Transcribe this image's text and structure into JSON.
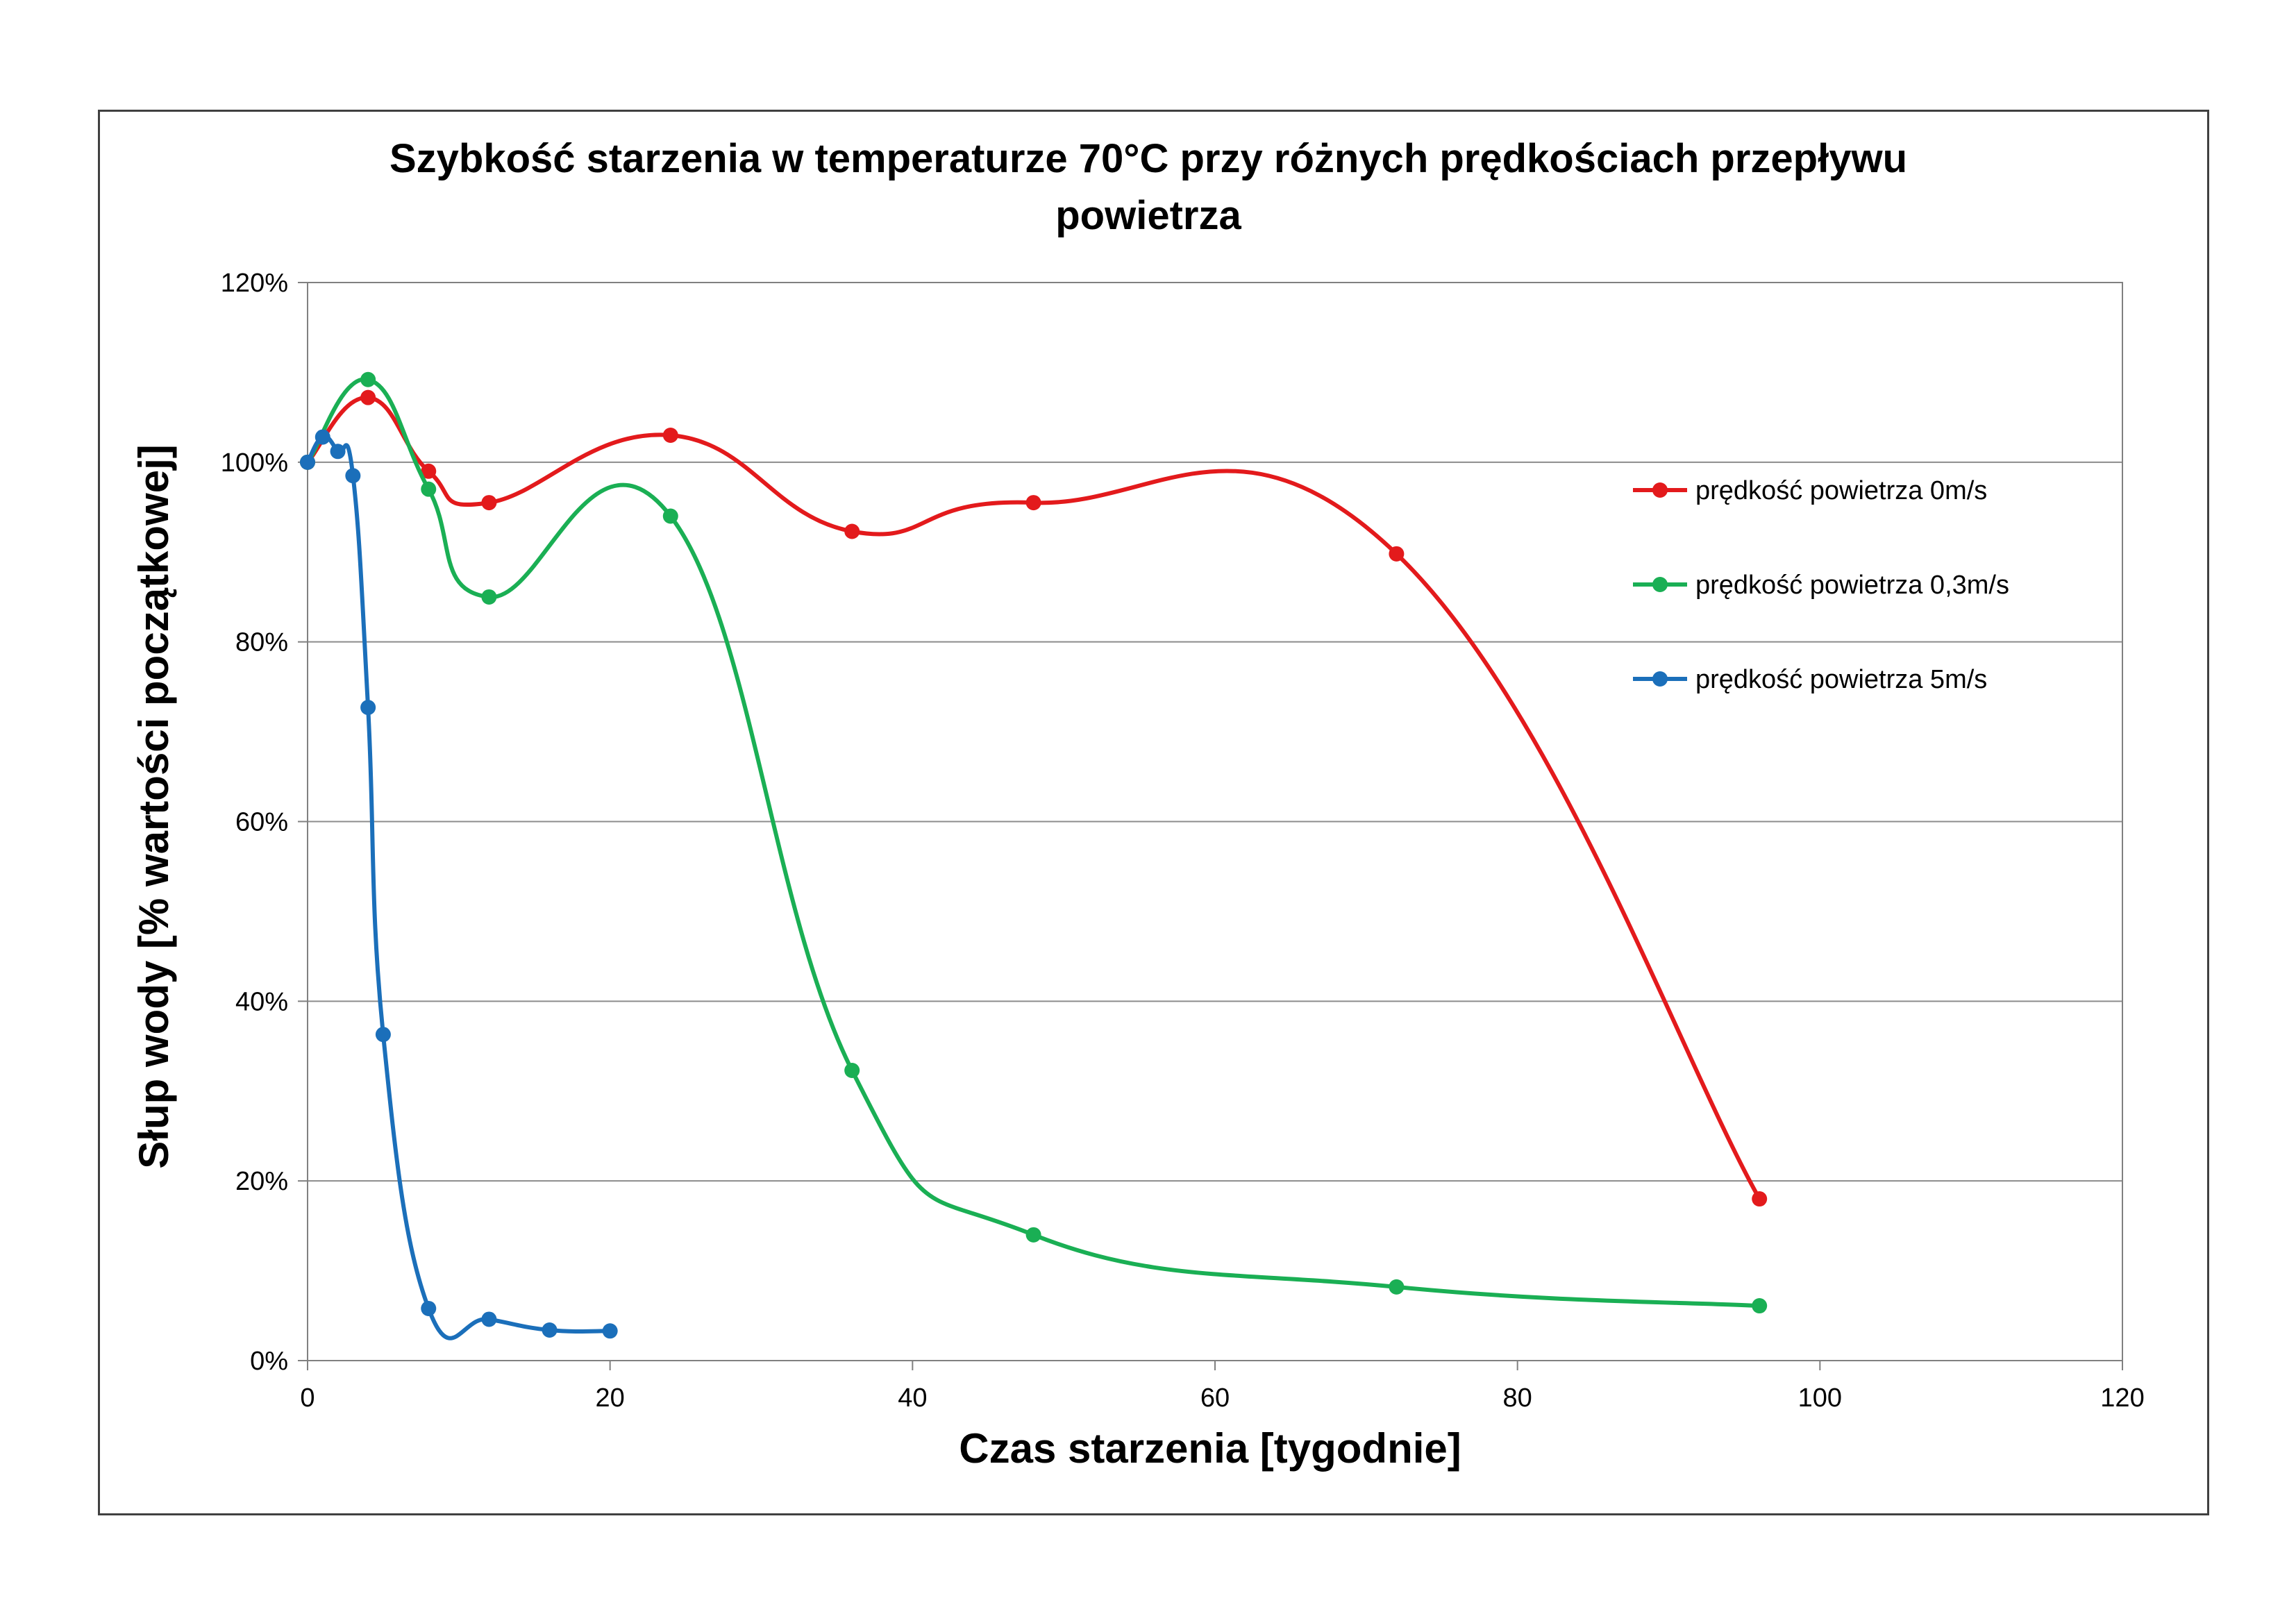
{
  "chart_data": {
    "type": "line",
    "title_line1": "Szybkość starzenia w temperaturze 70°C przy różnych prędkościach przepływu",
    "title_line2": "powietrza",
    "xlabel": "Czas starzenia [tygodnie]",
    "ylabel": "Słup wody [% wartości początkowej]",
    "xlim": [
      0,
      120
    ],
    "ylim": [
      0,
      1.2
    ],
    "x_ticks": [
      "0",
      "20",
      "40",
      "60",
      "80",
      "100",
      "120"
    ],
    "y_ticks": [
      "0%",
      "20%",
      "40%",
      "60%",
      "80%",
      "100%",
      "120%"
    ],
    "grid": "horizontal",
    "smooth": true,
    "legend_position": "right",
    "series": [
      {
        "name": "prędkość powietrza  0m/s",
        "color": "#e31a1c",
        "points": [
          [
            0,
            1.0
          ],
          [
            4,
            1.072
          ],
          [
            8,
            0.99
          ],
          [
            12,
            0.955
          ],
          [
            24,
            1.03
          ],
          [
            36,
            0.923
          ],
          [
            48,
            0.955
          ],
          [
            72,
            0.898
          ],
          [
            96,
            0.18
          ]
        ]
      },
      {
        "name": "prędkość powietrza  0,3m/s",
        "color": "#1aaf54",
        "points": [
          [
            0,
            1.0
          ],
          [
            4,
            1.092
          ],
          [
            8,
            0.97
          ],
          [
            12,
            0.85
          ],
          [
            24,
            0.94
          ],
          [
            36,
            0.323
          ],
          [
            48,
            0.14
          ],
          [
            72,
            0.082
          ],
          [
            96,
            0.061
          ]
        ]
      },
      {
        "name": "prędkość powietrza  5m/s",
        "color": "#1b6fba",
        "points": [
          [
            0,
            1.0
          ],
          [
            1,
            1.028
          ],
          [
            2,
            1.012
          ],
          [
            3,
            0.985
          ],
          [
            4,
            0.727
          ],
          [
            5,
            0.363
          ],
          [
            8,
            0.058
          ],
          [
            12,
            0.046
          ],
          [
            16,
            0.034
          ],
          [
            20,
            0.033
          ]
        ]
      }
    ]
  }
}
